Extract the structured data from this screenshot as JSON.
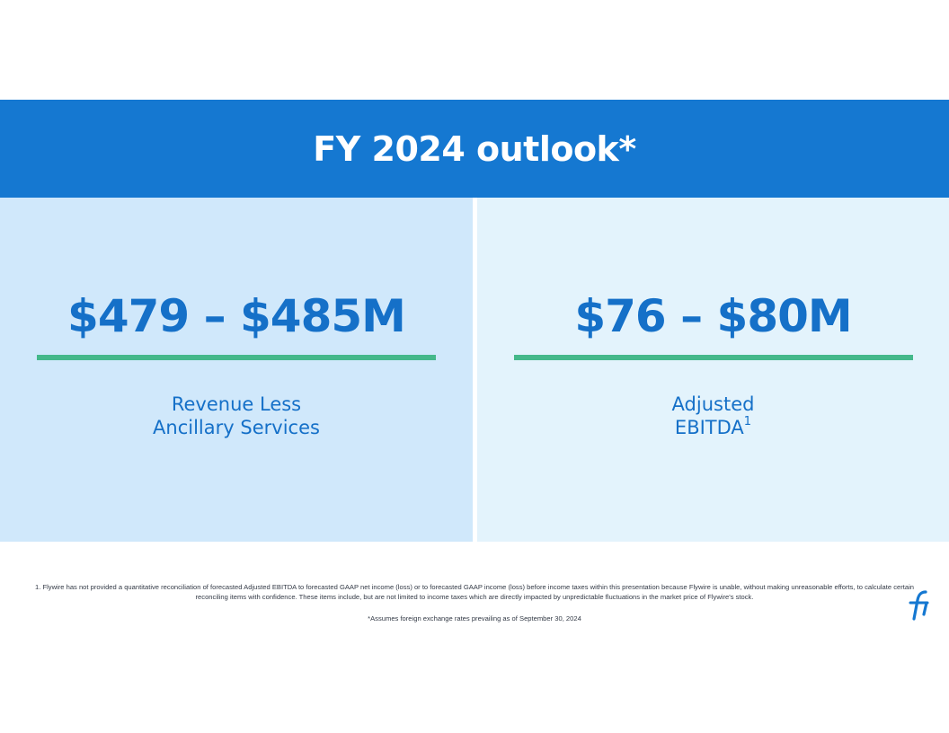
{
  "header": {
    "title": "FY 2024 outlook*"
  },
  "metrics": [
    {
      "value": "$479 – $485M",
      "label_line1": "Revenue Less",
      "label_line2": "Ancillary Services"
    },
    {
      "value": "$76 – $80M",
      "label_line1": "Adjusted",
      "label_line2": "EBITDA",
      "label_superscript": "1"
    }
  ],
  "footnotes": {
    "note1": "1. Flywire has not provided a quantitative reconciliation of forecasted Adjusted EBITDA to forecasted GAAP net income (loss) or to forecasted GAAP income (loss) before income taxes within this presentation because Flywire is unable, without making unreasonable efforts, to calculate certain reconciling items with confidence. These items include, but are not limited to income taxes which are directly impacted by unpredictable fluctuations in the market price of Flywire's stock.",
    "assumption": "*Assumes foreign exchange rates prevailing as of September 30, 2024"
  },
  "colors": {
    "header_bg": "#1578d1",
    "left_panel_bg": "#d0e8fb",
    "right_panel_bg": "#e3f3fc",
    "metric_text": "#1570c8",
    "rule": "#44b88a"
  },
  "logo": {
    "icon": "flywire-logo-icon"
  }
}
